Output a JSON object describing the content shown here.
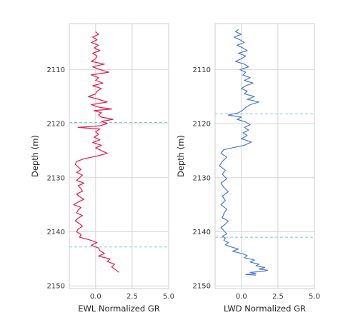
{
  "chart_data": [
    {
      "type": "line",
      "title": "",
      "xlabel": "EWL Normalized GR",
      "ylabel": "Depth (m)",
      "xlim": [
        -1.8,
        5.0
      ],
      "ylim": [
        2150.5,
        2101.5
      ],
      "y_inverted": true,
      "xticks": [
        0.0,
        2.5,
        5.0
      ],
      "xtick_labels": [
        "0.0",
        "2.5",
        "5.0"
      ],
      "yticks": [
        2110,
        2120,
        2130,
        2140,
        2150
      ],
      "ytick_labels": [
        "2110",
        "2120",
        "2130",
        "2140",
        "2150"
      ],
      "grid": true,
      "color": "#e8194a",
      "marker_color": "#7fc8dc",
      "markers": [
        2119.8,
        2142.8
      ],
      "series": [
        {
          "x": [
            0.0,
            0.2,
            -0.2,
            0.1,
            -0.3,
            0.2,
            -0.1,
            0.3,
            -0.2,
            0.1,
            0.0,
            -0.3,
            0.6,
            -0.2,
            0.3,
            0.9,
            -0.3,
            0.2,
            0.0,
            0.5,
            -0.2,
            0.4,
            0.1,
            0.0,
            -0.5,
            0.2,
            0.8,
            -0.3,
            0.3,
            1.1,
            -0.1,
            0.4,
            0.2,
            0.4,
            1.2,
            0.4,
            0.8,
            0.3,
            -1.2,
            0.3,
            0.0,
            0.2,
            -0.1,
            0.3,
            -0.2,
            0.4,
            0.0,
            0.8,
            0.1,
            -0.8,
            -1.3,
            -1.4,
            -1.2,
            -1.0,
            -1.3,
            -0.9,
            -1.1,
            -1.3,
            -0.8,
            -1.2,
            -1.0,
            -0.9,
            -1.3,
            -1.1,
            -0.8,
            -1.2,
            -1.5,
            -1.0,
            -1.2,
            -1.3,
            -0.9,
            -1.2,
            -1.4,
            -1.1,
            -0.9,
            -1.2,
            -1.3,
            -1.0,
            -1.1,
            -0.4,
            0.1,
            -0.3,
            0.2,
            0.3,
            0.6,
            0.2,
            1.0,
            0.8,
            1.3,
            1.1,
            1.6
          ],
          "y": [
            2103.0,
            2103.5,
            2104.0,
            2104.5,
            2105.0,
            2105.5,
            2106.0,
            2106.5,
            2107.0,
            2107.5,
            2108.0,
            2108.5,
            2109.0,
            2109.5,
            2110.0,
            2110.5,
            2111.0,
            2111.5,
            2112.0,
            2112.5,
            2113.0,
            2113.5,
            2114.0,
            2114.5,
            2115.0,
            2115.5,
            2116.0,
            2116.5,
            2117.0,
            2117.3,
            2117.6,
            2118.0,
            2118.4,
            2118.8,
            2119.2,
            2119.6,
            2120.0,
            2120.4,
            2120.7,
            2121.0,
            2121.5,
            2122.0,
            2122.5,
            2123.0,
            2123.5,
            2124.0,
            2124.5,
            2125.5,
            2126.0,
            2126.5,
            2127.0,
            2127.5,
            2128.0,
            2128.5,
            2129.0,
            2129.5,
            2130.0,
            2130.5,
            2131.0,
            2131.5,
            2132.0,
            2132.5,
            2133.0,
            2133.5,
            2134.0,
            2134.5,
            2135.0,
            2135.5,
            2136.0,
            2136.5,
            2137.0,
            2137.5,
            2138.0,
            2138.5,
            2139.0,
            2139.5,
            2140.0,
            2140.5,
            2141.0,
            2141.5,
            2142.0,
            2142.5,
            2143.0,
            2143.5,
            2144.0,
            2144.5,
            2145.0,
            2145.5,
            2146.0,
            2146.5,
            2147.5
          ]
        }
      ]
    },
    {
      "type": "line",
      "title": "",
      "xlabel": "LWD Normalized GR",
      "ylabel": "Depth (m)",
      "xlim": [
        -1.8,
        5.0
      ],
      "ylim": [
        2150.5,
        2101.5
      ],
      "y_inverted": true,
      "xticks": [
        0.0,
        2.5,
        5.0
      ],
      "xtick_labels": [
        "0.0",
        "2.5",
        "5.0"
      ],
      "yticks": [
        2110,
        2120,
        2130,
        2140,
        2150
      ],
      "ytick_labels": [
        "2110",
        "2120",
        "2130",
        "2140",
        "2150"
      ],
      "grid": true,
      "color": "#4a78d8",
      "marker_color": "#7fc8dc",
      "markers": [
        2118.2,
        2141.0
      ],
      "series": [
        {
          "x": [
            -0.2,
            -0.4,
            0.0,
            -0.5,
            -0.1,
            0.2,
            -0.3,
            0.1,
            0.4,
            -0.2,
            0.3,
            0.0,
            -0.4,
            0.2,
            0.5,
            -0.1,
            0.3,
            0.1,
            0.6,
            0.2,
            0.8,
            0.3,
            0.0,
            0.4,
            0.2,
            0.9,
            0.4,
            1.2,
            0.6,
            0.3,
            0.1,
            -0.2,
            -0.9,
            0.0,
            -0.3,
            0.3,
            0.6,
            0.2,
            0.5,
            0.1,
            0.4,
            0.0,
            0.7,
            0.2,
            -1.2,
            -1.4,
            -1.0,
            -1.3,
            -1.5,
            -1.1,
            -1.3,
            -1.0,
            -1.4,
            -1.2,
            -0.9,
            -1.3,
            -1.1,
            -1.4,
            -1.0,
            -1.2,
            -1.3,
            -0.9,
            -1.1,
            -1.4,
            -1.2,
            -1.0,
            -1.3,
            -1.1,
            -1.2,
            -0.9,
            -1.1,
            -0.7,
            -0.2,
            -0.6,
            0.0,
            0.4,
            0.2,
            0.9,
            0.6,
            1.2,
            1.0,
            1.6,
            1.2,
            1.8,
            1.5,
            0.6,
            1.0,
            0.3,
            1.0
          ],
          "y": [
            2102.6,
            2103.0,
            2103.5,
            2104.0,
            2104.5,
            2105.0,
            2105.5,
            2106.0,
            2106.5,
            2107.0,
            2107.5,
            2108.0,
            2108.5,
            2109.0,
            2109.5,
            2110.0,
            2110.5,
            2111.0,
            2111.5,
            2112.0,
            2112.5,
            2113.0,
            2113.5,
            2114.0,
            2114.5,
            2115.0,
            2115.5,
            2116.0,
            2116.5,
            2117.0,
            2117.5,
            2118.0,
            2118.4,
            2118.8,
            2119.2,
            2119.7,
            2120.2,
            2120.7,
            2121.2,
            2121.7,
            2122.2,
            2122.8,
            2123.4,
            2124.0,
            2124.8,
            2125.5,
            2126.2,
            2127.0,
            2127.8,
            2128.6,
            2129.4,
            2130.2,
            2131.0,
            2131.8,
            2132.6,
            2133.4,
            2134.2,
            2135.0,
            2135.8,
            2136.6,
            2137.4,
            2138.0,
            2138.6,
            2139.2,
            2139.8,
            2140.4,
            2140.8,
            2141.2,
            2141.6,
            2142.0,
            2142.4,
            2142.8,
            2143.2,
            2143.6,
            2144.0,
            2144.4,
            2144.8,
            2145.2,
            2145.6,
            2146.0,
            2146.3,
            2146.6,
            2146.9,
            2147.1,
            2147.3,
            2147.5,
            2147.7,
            2147.9,
            2148.0
          ]
        }
      ]
    }
  ]
}
